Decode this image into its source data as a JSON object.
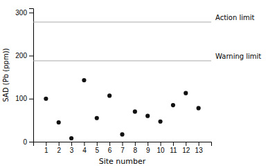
{
  "chart_data": {
    "type": "scatter",
    "x": [
      1,
      2,
      3,
      4,
      5,
      6,
      7,
      8,
      9,
      10,
      11,
      12,
      13
    ],
    "values": [
      100,
      45,
      8,
      143,
      55,
      107,
      17,
      70,
      60,
      47,
      85,
      113,
      78
    ],
    "color": "#111111",
    "marker": "circle",
    "xlabel": "Site number",
    "ylabel": "SAD  (Pb (ppm))",
    "xlim": [
      0.0,
      14.0
    ],
    "ylim": [
      0,
      310
    ],
    "xticks": [
      1,
      2,
      3,
      4,
      5,
      6,
      7,
      8,
      9,
      10,
      11,
      12,
      13
    ],
    "yticks": [
      0,
      100,
      200,
      300
    ],
    "hlines": [
      {
        "value": 278,
        "label": "Action limit",
        "color": "#aaaaaa"
      },
      {
        "value": 188,
        "label": "Warning limit",
        "color": "#aaaaaa"
      }
    ],
    "grid": false
  }
}
